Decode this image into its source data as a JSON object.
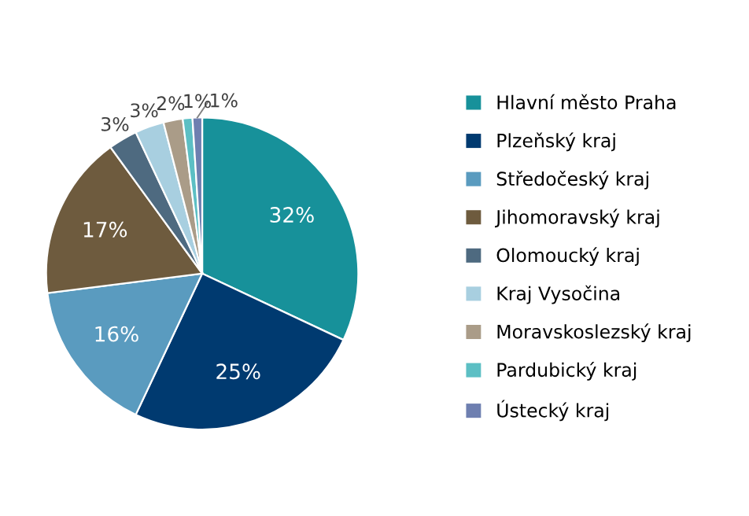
{
  "chart_data": {
    "type": "pie",
    "categories": [
      "Hlavní město Praha",
      "Plzeňský kraj",
      "Středočeský kraj",
      "Jihomoravský kraj",
      "Olomoucký kraj",
      "Kraj Vysočina",
      "Moravskoslezský kraj",
      "Pardubický kraj",
      "Ústecký kraj"
    ],
    "values": [
      32,
      25,
      16,
      17,
      3,
      3,
      2,
      1,
      1
    ],
    "colors": [
      "#17919a",
      "#003a70",
      "#5a9bbf",
      "#6e5b3e",
      "#4e6a80",
      "#a8cfe0",
      "#aa9c88",
      "#5cbfc4",
      "#6e7fb0"
    ],
    "value_labels": [
      "32%",
      "25%",
      "16%",
      "17%",
      "3%",
      "3%",
      "2%",
      "1%",
      "1%"
    ],
    "legend": "right"
  }
}
